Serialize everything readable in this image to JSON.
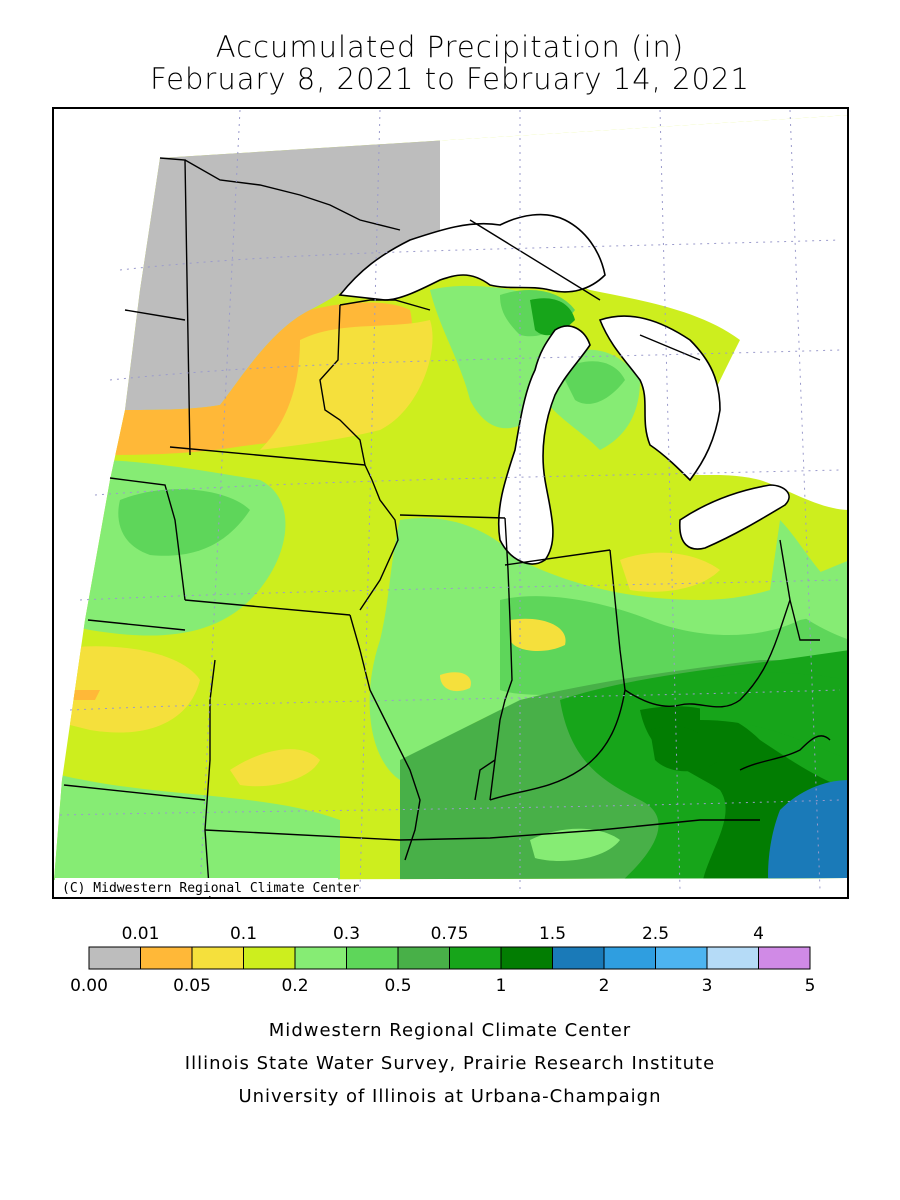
{
  "title": "Accumulated Precipitation (in)",
  "subtitle": "February 8, 2021 to February 14, 2021",
  "copyright": "(C) Midwestern Regional Climate Center",
  "credits": [
    "Midwestern Regional Climate Center",
    "Illinois State Water Survey, Prairie Research Institute",
    "University of Illinois at Urbana-Champaign"
  ],
  "legend": {
    "upper_labels": [
      "0.01",
      "0.1",
      "0.3",
      "0.75",
      "1.5",
      "2.5",
      "4"
    ],
    "lower_labels": [
      "0.00",
      "0.05",
      "0.2",
      "0.5",
      "1",
      "2",
      "3",
      "5"
    ],
    "colors": [
      "#bdbdbd",
      "#ffb838",
      "#f5e03c",
      "#cdee1e",
      "#86ec74",
      "#5ed65a",
      "#48b048",
      "#17a51a",
      "#027d02",
      "#1a7ab8",
      "#2f9ee0",
      "#4db4f0",
      "#b5dbf7",
      "#d08ae6"
    ]
  },
  "map_colors": {
    "water": "#ffffff",
    "nodata": "#ffffff",
    "boundary": "#000000",
    "grid": "#9a9acb"
  }
}
